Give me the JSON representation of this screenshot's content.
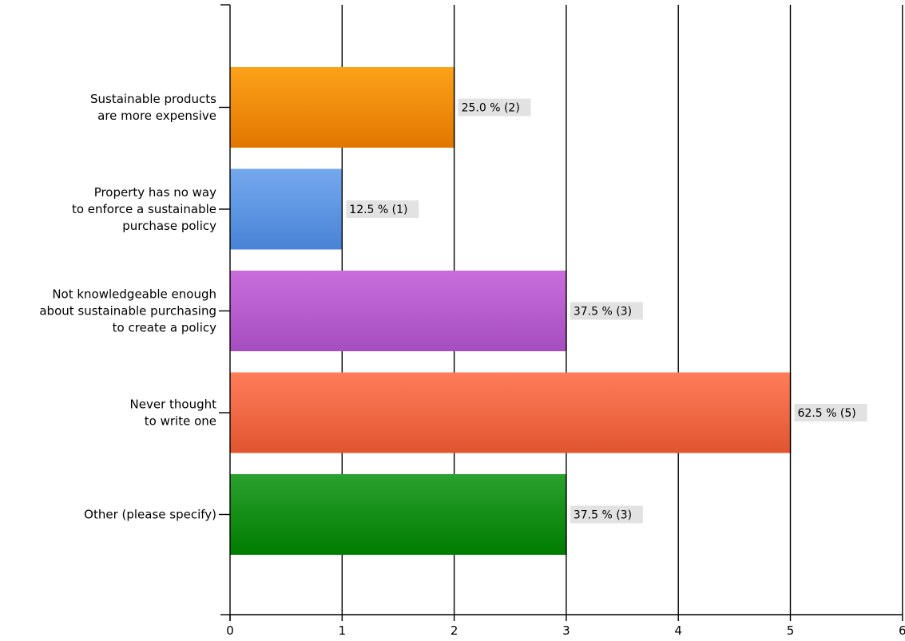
{
  "chart_data": {
    "type": "bar",
    "orientation": "horizontal",
    "categories": [
      [
        "Sustainable products",
        "are more expensive"
      ],
      [
        "Property has no way",
        "to enforce a sustainable",
        "purchase policy"
      ],
      [
        "Not knowledgeable enough",
        "about sustainable purchasing",
        "to create a policy"
      ],
      [
        "Never thought",
        "to write one"
      ],
      [
        "Other (please specify)"
      ]
    ],
    "values": [
      2,
      1,
      3,
      5,
      3
    ],
    "data_labels": [
      "25.0 % (2)",
      "12.5 % (1)",
      "37.5 % (3)",
      "62.5 % (5)",
      "37.5 % (3)"
    ],
    "colors": [
      [
        "#fca21a",
        "#e27600"
      ],
      [
        "#75a9ee",
        "#4983d6"
      ],
      [
        "#c96ddc",
        "#a64ec0"
      ],
      [
        "#ff7d5a",
        "#e05530"
      ],
      [
        "#2ba12f",
        "#007c00"
      ]
    ],
    "xlim": [
      0,
      6
    ],
    "xticks": [
      "0",
      "1",
      "2",
      "3",
      "4",
      "5",
      "6"
    ],
    "grid": true,
    "title": "",
    "xlabel": "",
    "ylabel": ""
  }
}
